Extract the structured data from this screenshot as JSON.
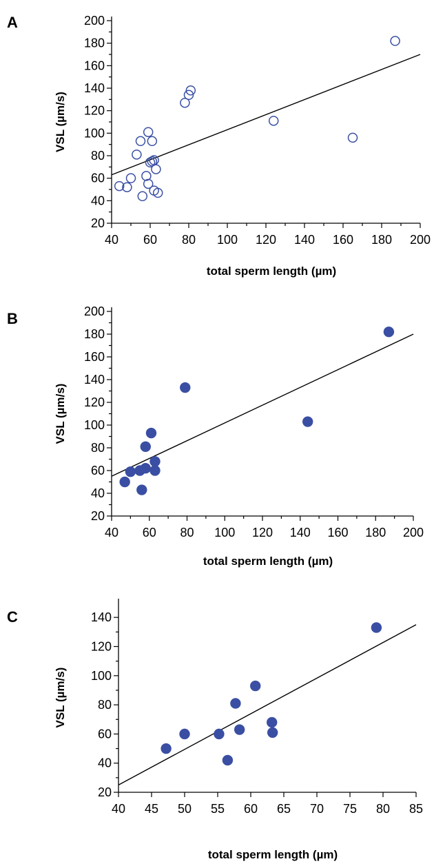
{
  "chart_data": [
    {
      "type": "scatter",
      "panel_label": "A",
      "xlabel": "total sperm length (µm)",
      "ylabel": "VSL  (µm/s)",
      "xlim": [
        40,
        200
      ],
      "ylim": [
        20,
        200
      ],
      "xticks": [
        40,
        60,
        80,
        100,
        120,
        140,
        160,
        180,
        200
      ],
      "yticks": [
        20,
        40,
        60,
        80,
        100,
        120,
        140,
        160,
        180,
        200
      ],
      "marker": "open-circle",
      "color": "#3a4fa3",
      "series": [
        {
          "points": [
            [
              44,
              53
            ],
            [
              48,
              52
            ],
            [
              50,
              60
            ],
            [
              53,
              81
            ],
            [
              55,
              93
            ],
            [
              56,
              44
            ],
            [
              58,
              62
            ],
            [
              59,
              55
            ],
            [
              59,
              101
            ],
            [
              60,
              74
            ],
            [
              61,
              93
            ],
            [
              61,
              75
            ],
            [
              62,
              76
            ],
            [
              62,
              49
            ],
            [
              63,
              68
            ],
            [
              64,
              47
            ],
            [
              78,
              127
            ],
            [
              80,
              134
            ],
            [
              81,
              138
            ],
            [
              124,
              111
            ],
            [
              165,
              96
            ],
            [
              187,
              182
            ]
          ]
        }
      ],
      "fit_line": [
        [
          40,
          63
        ],
        [
          200,
          170
        ]
      ]
    },
    {
      "type": "scatter",
      "panel_label": "B",
      "xlabel": "total sperm length (µm)",
      "ylabel": "VSL  (µm/s)",
      "xlim": [
        40,
        200
      ],
      "ylim": [
        20,
        200
      ],
      "xticks": [
        40,
        60,
        80,
        100,
        120,
        140,
        160,
        180,
        200
      ],
      "yticks": [
        20,
        40,
        60,
        80,
        100,
        120,
        140,
        160,
        180,
        200
      ],
      "marker": "filled-circle",
      "color": "#3a4fa3",
      "series": [
        {
          "points": [
            [
              47,
              50
            ],
            [
              50,
              59
            ],
            [
              55,
              60
            ],
            [
              56,
              43
            ],
            [
              58,
              81
            ],
            [
              58,
              62
            ],
            [
              61,
              93
            ],
            [
              63,
              68
            ],
            [
              63,
              60
            ],
            [
              79,
              133
            ],
            [
              144,
              103
            ],
            [
              187,
              182
            ]
          ]
        }
      ],
      "fit_line": [
        [
          40,
          55
        ],
        [
          200,
          180
        ]
      ]
    },
    {
      "type": "scatter",
      "panel_label": "C",
      "xlabel": "total sperm length (µm)",
      "ylabel": "VSL  (µm/s)",
      "xlim": [
        40,
        85
      ],
      "ylim": [
        20,
        150
      ],
      "xticks": [
        40,
        45,
        50,
        55,
        60,
        65,
        70,
        75,
        80,
        85
      ],
      "yticks": [
        20,
        40,
        60,
        80,
        100,
        120,
        140
      ],
      "marker": "filled-circle",
      "color": "#3a4fa3",
      "series": [
        {
          "points": [
            [
              47.2,
              50
            ],
            [
              50,
              60
            ],
            [
              55.2,
              60
            ],
            [
              56.5,
              42
            ],
            [
              57.7,
              81
            ],
            [
              58.3,
              63
            ],
            [
              60.7,
              93
            ],
            [
              63.2,
              68
            ],
            [
              63.3,
              61
            ],
            [
              79,
              133
            ]
          ]
        }
      ],
      "fit_line": [
        [
          40,
          25
        ],
        [
          85,
          135
        ]
      ]
    }
  ]
}
